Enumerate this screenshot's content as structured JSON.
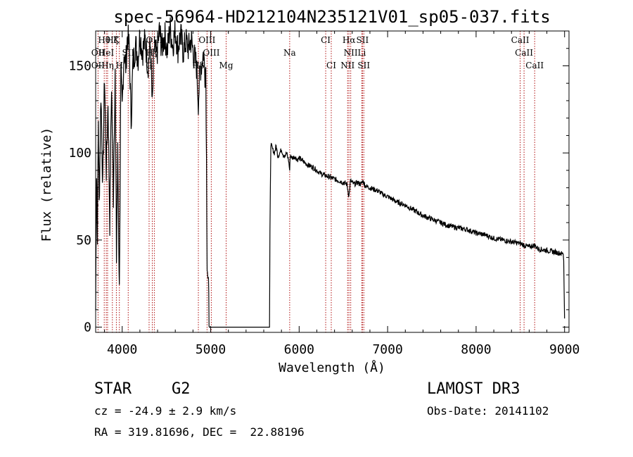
{
  "chart_data": {
    "type": "line",
    "title": "spec-56964-HD212104N235121V01_sp05-037.fits",
    "xlabel": "Wavelength (Å)",
    "ylabel": "Flux (relative)",
    "xlim": [
      3700,
      9050
    ],
    "ylim": [
      -3,
      170
    ],
    "xticks": [
      4000,
      5000,
      6000,
      7000,
      8000,
      9000
    ],
    "yticks": [
      0,
      50,
      100,
      150
    ],
    "grid": false,
    "series": [
      {
        "name": "spectrum",
        "x": [
          3700,
          3710,
          3720,
          3730,
          3740,
          3760,
          3780,
          3800,
          3820,
          3840,
          3860,
          3880,
          3900,
          3920,
          3935,
          3950,
          3968,
          3985,
          4000,
          4020,
          4040,
          4060,
          4080,
          4101,
          4120,
          4150,
          4180,
          4200,
          4230,
          4260,
          4290,
          4320,
          4340,
          4360,
          4390,
          4420,
          4450,
          4480,
          4510,
          4540,
          4570,
          4600,
          4630,
          4660,
          4690,
          4720,
          4750,
          4780,
          4810,
          4840,
          4861,
          4880,
          4900,
          4920,
          4935,
          4945,
          4960,
          4975,
          4985,
          5000,
          5665,
          5670,
          5675,
          5680,
          5700,
          5720,
          5740,
          5760,
          5780,
          5800,
          5820,
          5840,
          5860,
          5880,
          5893,
          5900,
          5920,
          5950,
          5980,
          6000,
          6050,
          6100,
          6150,
          6200,
          6250,
          6300,
          6350,
          6400,
          6450,
          6500,
          6540,
          6563,
          6580,
          6620,
          6660,
          6700,
          6720,
          6750,
          6800,
          6850,
          6900,
          6950,
          7000,
          7100,
          7200,
          7300,
          7400,
          7500,
          7600,
          7700,
          7800,
          7900,
          8000,
          8100,
          8200,
          8300,
          8400,
          8498,
          8542,
          8600,
          8662,
          8700,
          8800,
          8900,
          8985,
          8990,
          8995,
          9000
        ],
        "values": [
          10,
          90,
          55,
          120,
          70,
          135,
          80,
          145,
          90,
          130,
          60,
          140,
          75,
          150,
          40,
          100,
          20,
          145,
          125,
          158,
          150,
          168,
          160,
          118,
          150,
          162,
          155,
          168,
          158,
          165,
          150,
          162,
          125,
          160,
          155,
          170,
          160,
          168,
          158,
          172,
          162,
          170,
          160,
          168,
          158,
          164,
          160,
          165,
          156,
          150,
          130,
          148,
          152,
          158,
          145,
          150,
          40,
          20,
          0,
          0,
          0,
          55,
          80,
          105,
          102,
          100,
          104,
          98,
          100,
          102,
          99,
          98,
          100,
          96,
          90,
          99,
          97,
          98,
          96,
          97,
          95,
          93,
          92,
          90,
          88,
          87,
          86,
          85,
          84,
          83,
          82,
          75,
          84,
          82,
          83,
          82,
          84,
          81,
          80,
          79,
          78,
          76,
          75,
          72,
          70,
          67,
          64,
          62,
          60,
          58,
          57,
          56,
          54,
          53,
          51,
          50,
          49,
          48,
          47,
          46,
          47,
          45,
          44,
          43,
          42,
          38,
          20,
          5
        ]
      }
    ],
    "spectral_lines": [
      {
        "label": "Hθ",
        "x": 3797,
        "row": 1
      },
      {
        "label": "K",
        "x": 3934,
        "row": 1
      },
      {
        "label": "Hζ",
        "x": 3889,
        "row": 1
      },
      {
        "label": "OIII",
        "x": 4363,
        "row": 1
      },
      {
        "label": "OIII",
        "x": 4959,
        "row": 1
      },
      {
        "label": "CaII",
        "x": 8498,
        "row": 1
      },
      {
        "label": "CI",
        "x": 6300,
        "row": 1
      },
      {
        "label": "Hα",
        "x": 6563,
        "row": 1
      },
      {
        "label": "SII",
        "x": 6716,
        "row": 1
      },
      {
        "label": "OII",
        "x": 3727,
        "row": 2
      },
      {
        "label": "HeI",
        "x": 3820,
        "row": 2
      },
      {
        "label": "SII",
        "x": 4068,
        "row": 2
      },
      {
        "label": "Hγ",
        "x": 4340,
        "row": 2
      },
      {
        "label": "OIII",
        "x": 5007,
        "row": 2
      },
      {
        "label": "Na",
        "x": 5893,
        "row": 2
      },
      {
        "label": "NII",
        "x": 6583,
        "row": 2
      },
      {
        "label": "Li",
        "x": 6708,
        "row": 2
      },
      {
        "label": "CaII",
        "x": 8542,
        "row": 2
      },
      {
        "label": "OII",
        "x": 3727,
        "row": 3
      },
      {
        "label": "Hη",
        "x": 3835,
        "row": 3
      },
      {
        "label": "H",
        "x": 3968,
        "row": 3
      },
      {
        "label": "G",
        "x": 4304,
        "row": 3
      },
      {
        "label": "Hβ",
        "x": 4861,
        "row": 3
      },
      {
        "label": "Mg",
        "x": 5175,
        "row": 3
      },
      {
        "label": "CI",
        "x": 6363,
        "row": 3
      },
      {
        "label": "NII",
        "x": 6548,
        "row": 3
      },
      {
        "label": "SII",
        "x": 6731,
        "row": 3
      },
      {
        "label": "CaII",
        "x": 8662,
        "row": 3
      }
    ],
    "line_marker_color": "#b01010",
    "spectrum_color": "#000000"
  },
  "info": {
    "object_type": "STAR",
    "subclass": "G2",
    "survey": "LAMOST DR3",
    "redshift": "cz = -24.9 ± 2.9 km/s",
    "obs_date": "Obs-Date: 20141102",
    "coords": "RA = 319.81696, DEC =  22.88196"
  }
}
